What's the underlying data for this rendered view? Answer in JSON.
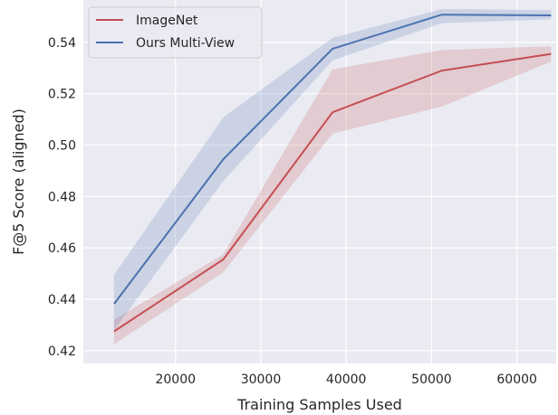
{
  "chart_data": {
    "type": "line",
    "xlabel": "Training Samples Used",
    "ylabel": "F@5 Score (aligned)",
    "xlim": [
      9200,
      64600
    ],
    "ylim": [
      0.415,
      0.5565
    ],
    "xticks": [
      20000,
      30000,
      40000,
      50000,
      60000
    ],
    "yticks": [
      0.42,
      0.44,
      0.46,
      0.48,
      0.5,
      0.52,
      0.54
    ],
    "ytick_labels": [
      "0.42",
      "0.44",
      "0.46",
      "0.48",
      "0.50",
      "0.52",
      "0.54"
    ],
    "grid": true,
    "background": "#eaeaf2",
    "legend_position": "top-left",
    "series": [
      {
        "name": "ImageNet",
        "color": "#c44e52",
        "x": [
          12800,
          25600,
          38400,
          51200,
          64000
        ],
        "y": [
          0.4275,
          0.4555,
          0.5128,
          0.529,
          0.5355
        ],
        "y_lower": [
          0.4225,
          0.4505,
          0.5045,
          0.515,
          0.5325
        ],
        "y_upper": [
          0.432,
          0.4575,
          0.5295,
          0.537,
          0.5385
        ]
      },
      {
        "name": "Ours Multi-View",
        "color": "#4c72b0",
        "x": [
          12800,
          25600,
          38400,
          51200,
          64000
        ],
        "y": [
          0.4382,
          0.4945,
          0.5375,
          0.5508,
          0.5505
        ],
        "y_lower": [
          0.428,
          0.486,
          0.533,
          0.5475,
          0.549
        ],
        "y_upper": [
          0.4495,
          0.5108,
          0.5418,
          0.553,
          0.5525
        ]
      }
    ]
  }
}
